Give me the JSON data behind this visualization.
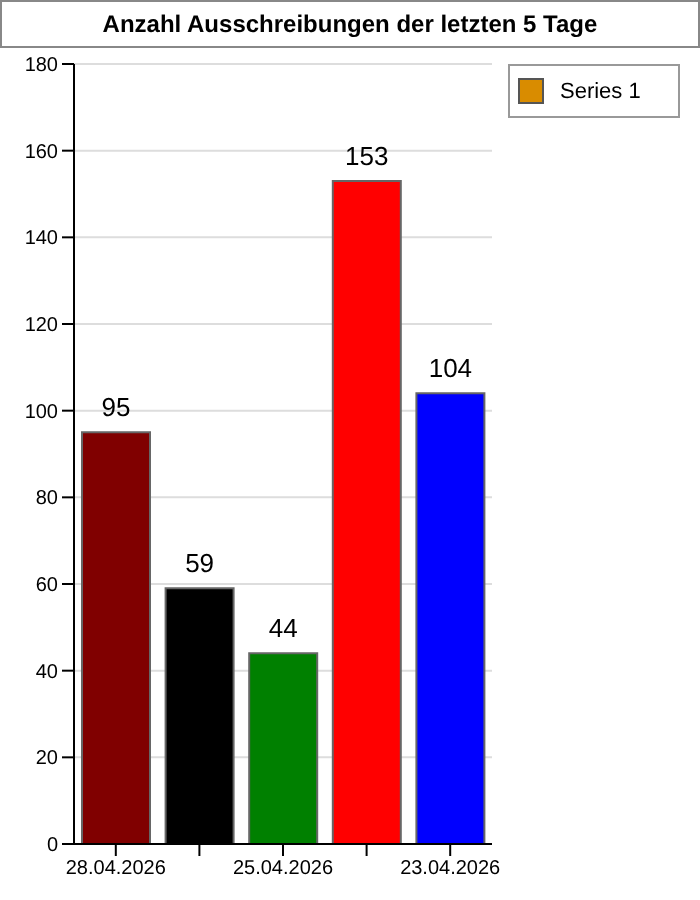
{
  "chart_data": {
    "type": "bar",
    "title": "Anzahl Ausschreibungen der letzten 5 Tage",
    "categories": [
      "28.04.2026",
      null,
      "25.04.2026",
      null,
      "23.04.2026"
    ],
    "series": [
      {
        "name": "Series 1",
        "color": "#d98c00",
        "values": [
          95,
          59,
          44,
          153,
          104
        ],
        "colors": [
          "#800000",
          "#000000",
          "#008000",
          "#ff0000",
          "#0000ff"
        ]
      }
    ],
    "ylim": [
      0,
      180
    ],
    "yticks": [
      0,
      20,
      40,
      60,
      80,
      100,
      120,
      140,
      160,
      180
    ],
    "grid": "y",
    "legend": "top right",
    "data_labels": true
  }
}
